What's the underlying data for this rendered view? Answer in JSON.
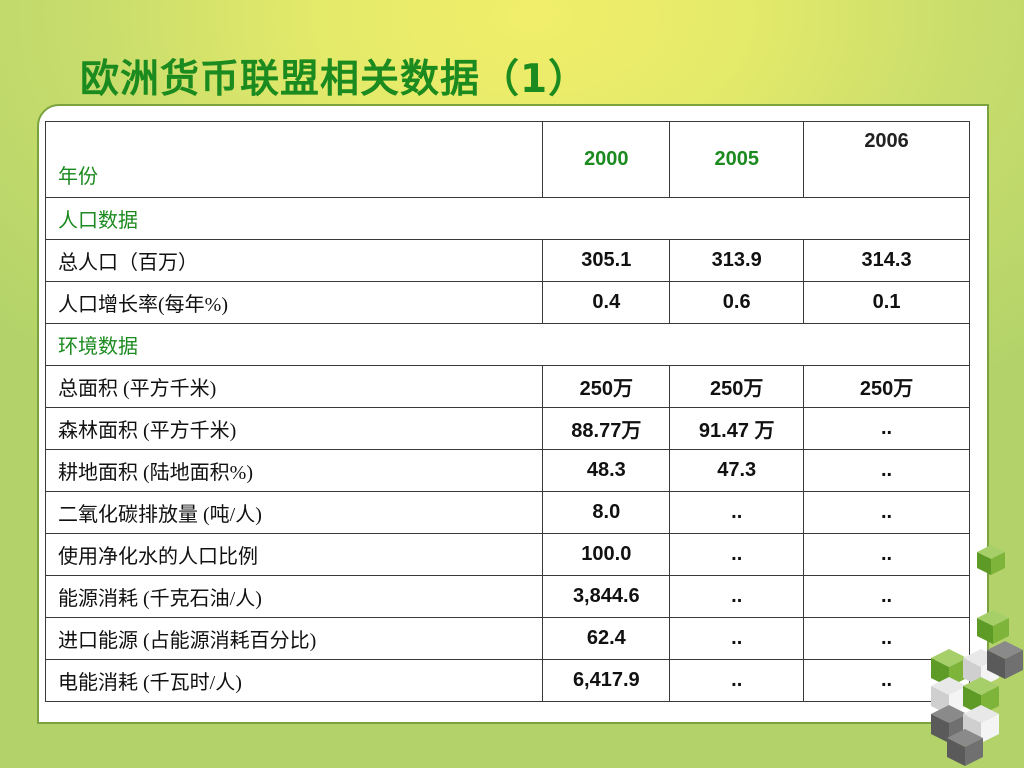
{
  "title": "欧洲货币联盟相关数据（1）",
  "table": {
    "header_label": "年份",
    "years": [
      "2000",
      "2005",
      "2006"
    ],
    "rows": [
      {
        "type": "section",
        "label": "人口数据"
      },
      {
        "type": "data",
        "label": "总人口（百万）",
        "values": [
          "305.1",
          "313.9",
          "314.3"
        ]
      },
      {
        "type": "data",
        "label": "人口增长率(每年%)",
        "values": [
          "0.4",
          "0.6",
          "0.1"
        ]
      },
      {
        "type": "section",
        "label": "环境数据"
      },
      {
        "type": "data",
        "label": "总面积 (平方千米)",
        "values": [
          "250万",
          "250万",
          "250万"
        ]
      },
      {
        "type": "data",
        "label": "森林面积 (平方千米)",
        "values": [
          "88.77万",
          "91.47 万",
          ".."
        ]
      },
      {
        "type": "data",
        "label": "耕地面积 (陆地面积%)",
        "values": [
          "48.3",
          "47.3",
          ".."
        ]
      },
      {
        "type": "data",
        "label": "二氧化碳排放量 (吨/人)",
        "values": [
          "8.0",
          "..",
          ".."
        ]
      },
      {
        "type": "data",
        "label": "使用净化水的人口比例",
        "values": [
          "100.0",
          "..",
          ".."
        ]
      },
      {
        "type": "data",
        "label": "能源消耗 (千克石油/人)",
        "values": [
          "3,844.6",
          "..",
          ".."
        ]
      },
      {
        "type": "data",
        "label": "进口能源 (占能源消耗百分比)",
        "values": [
          "62.4",
          "..",
          ".."
        ]
      },
      {
        "type": "data",
        "label": "电能消耗 (千瓦时/人)",
        "values": [
          "6,417.9",
          "..",
          ".."
        ]
      }
    ]
  },
  "colors": {
    "title_green": "#1b8a1f",
    "cube_green": "#6aa82c",
    "cube_gray": "#6a6a6a"
  }
}
